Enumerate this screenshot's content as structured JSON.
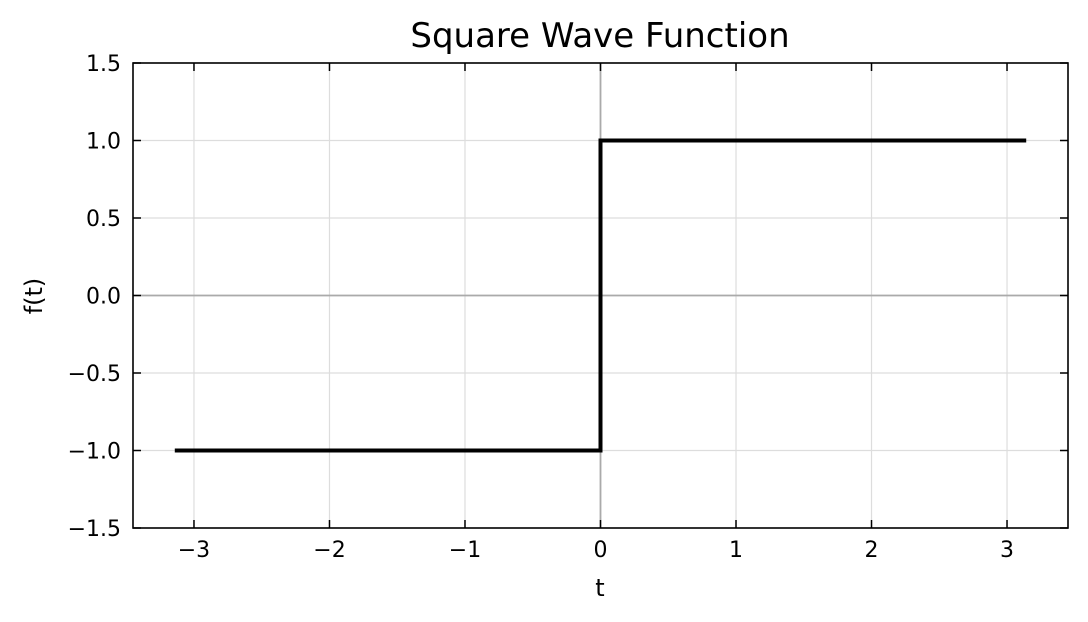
{
  "chart_data": {
    "type": "line",
    "title": "Square Wave Function",
    "xlabel": "t",
    "ylabel": "f(t)",
    "xlim": [
      -3.45,
      3.45
    ],
    "ylim": [
      -1.5,
      1.5
    ],
    "x_ticks": [
      -3,
      -2,
      -1,
      0,
      1,
      2,
      3
    ],
    "x_tick_labels": [
      "−3",
      "−2",
      "−1",
      "0",
      "1",
      "2",
      "3"
    ],
    "y_ticks": [
      -1.5,
      -1.0,
      -0.5,
      0.0,
      0.5,
      1.0,
      1.5
    ],
    "y_tick_labels": [
      "−1.5",
      "−1.0",
      "−0.5",
      "0.0",
      "0.5",
      "1.0",
      "1.5"
    ],
    "grid": true,
    "reference_lines": {
      "x": 0,
      "y": 0
    },
    "series": [
      {
        "x": [
          -3.14159,
          0.0,
          0.0,
          3.14159
        ],
        "y": [
          -1.0,
          -1.0,
          1.0,
          1.0
        ],
        "color": "#000000"
      }
    ]
  }
}
